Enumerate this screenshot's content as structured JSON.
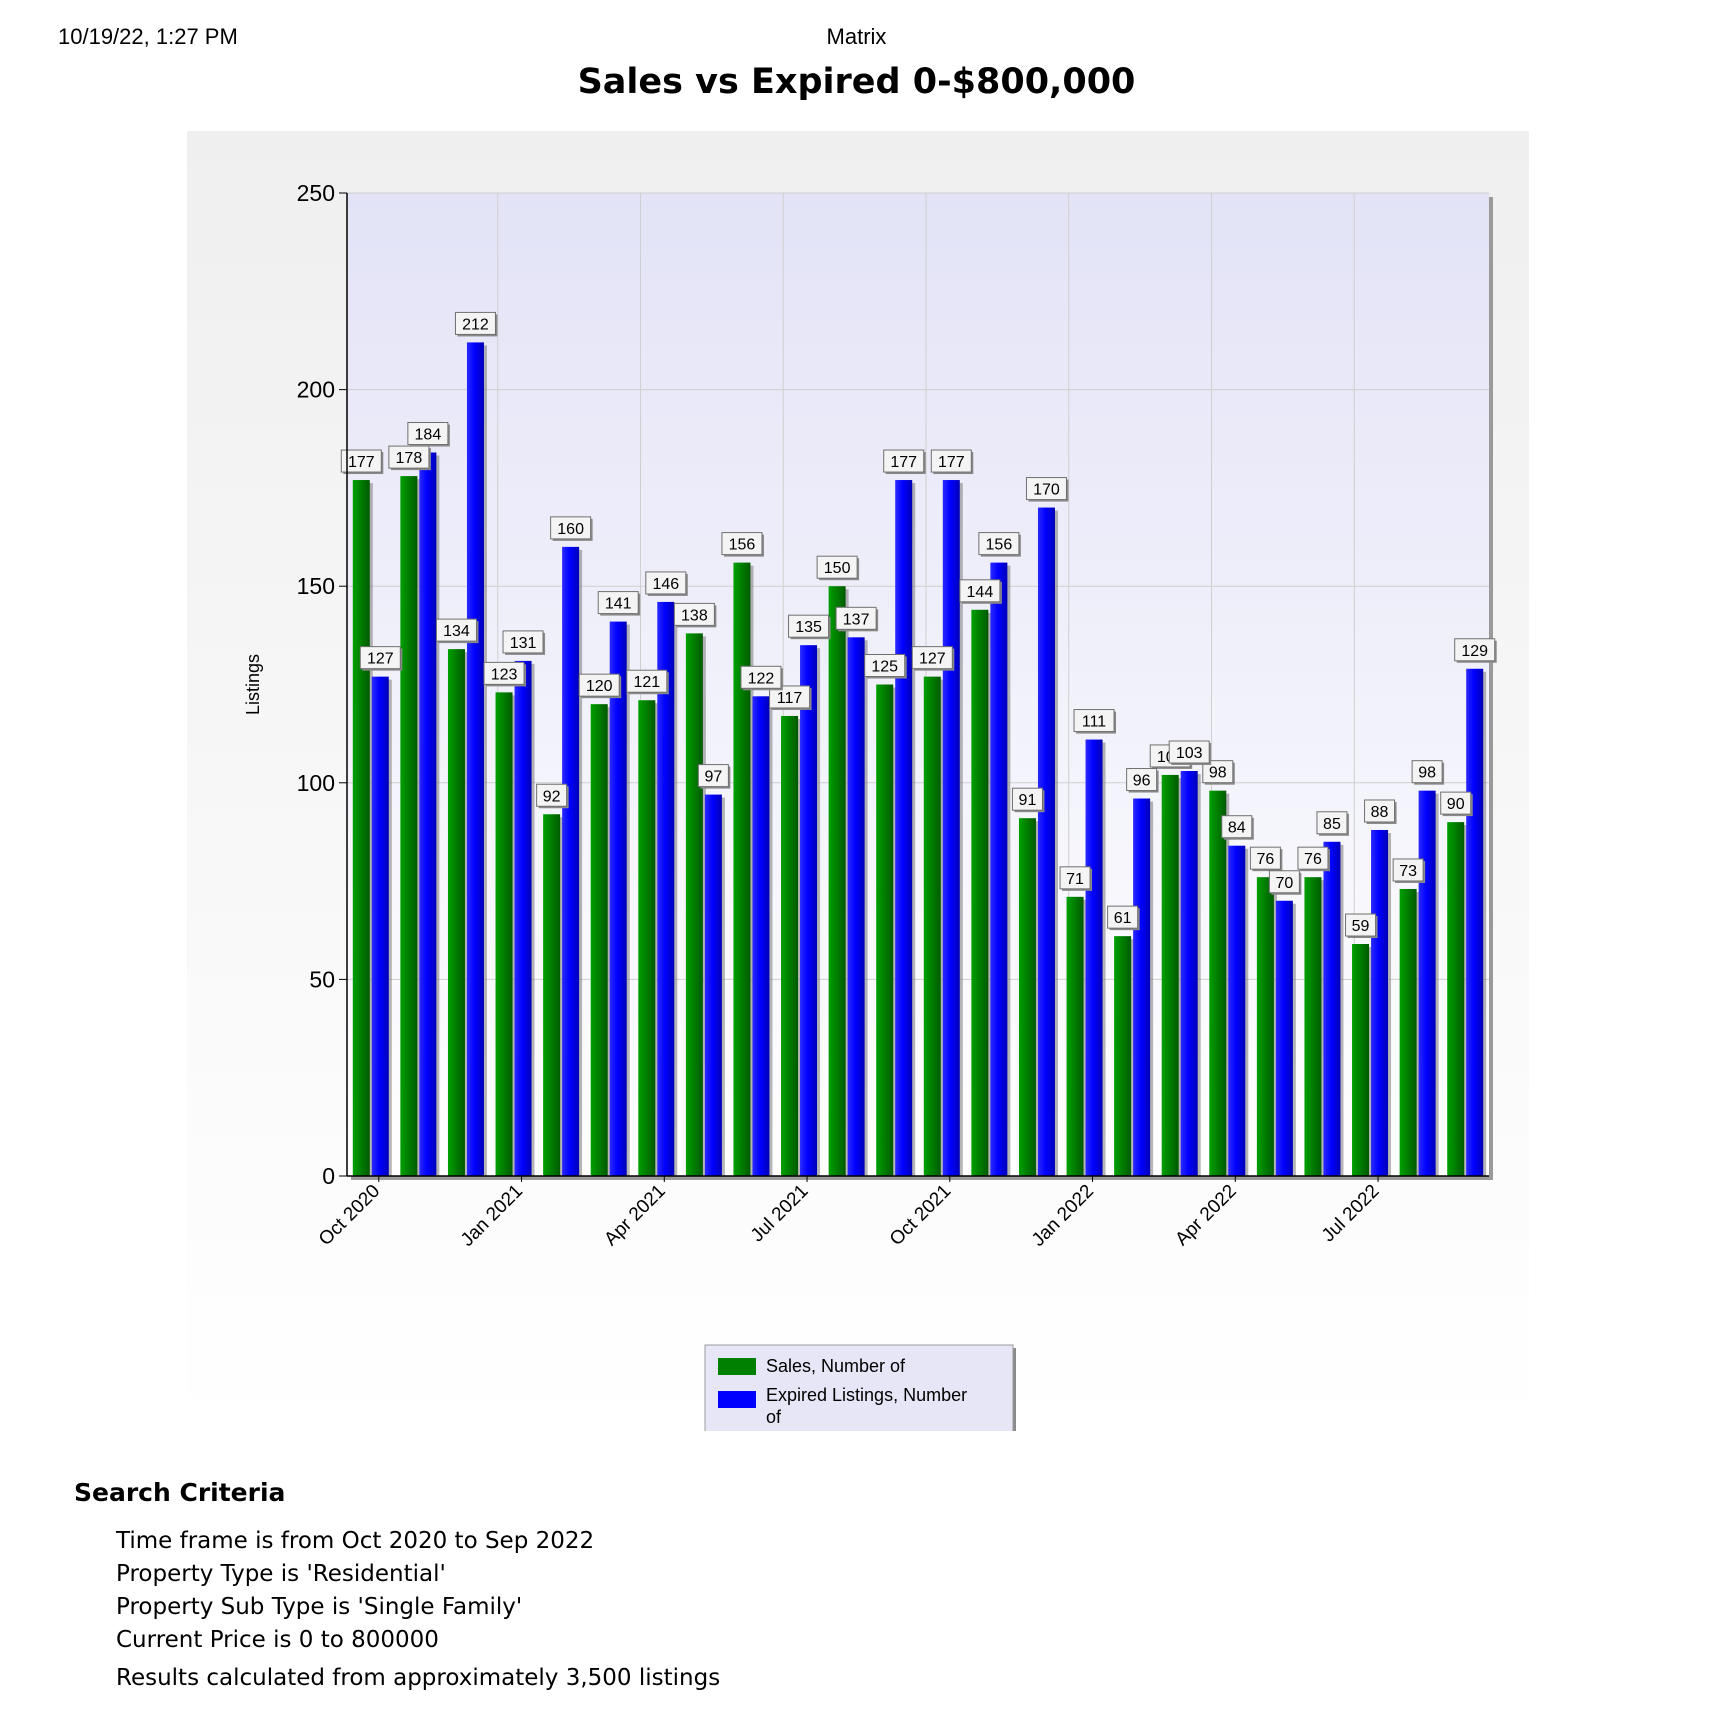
{
  "header": {
    "datetime": "10/19/22, 1:27 PM",
    "app": "Matrix"
  },
  "page_title": "Sales vs Expired 0-$800,000",
  "chart_data": {
    "type": "bar",
    "title": "Sales vs Expired 0-$800,000",
    "ylabel": "Listings",
    "xlabel": "",
    "ylim": [
      0,
      250
    ],
    "yticks": [
      0,
      50,
      100,
      150,
      200,
      250
    ],
    "grid": true,
    "legend_position": "bottom-center",
    "categories": [
      "Oct 2020",
      "Nov 2020",
      "Dec 2020",
      "Jan 2021",
      "Feb 2021",
      "Mar 2021",
      "Apr 2021",
      "May 2021",
      "Jun 2021",
      "Jul 2021",
      "Aug 2021",
      "Sep 2021",
      "Oct 2021",
      "Nov 2021",
      "Dec 2021",
      "Jan 2022",
      "Feb 2022",
      "Mar 2022",
      "Apr 2022",
      "May 2022",
      "Jun 2022",
      "Jul 2022",
      "Aug 2022",
      "Sep 2022"
    ],
    "xtick_labels": [
      "Oct 2020",
      "",
      "",
      "Jan 2021",
      "",
      "",
      "Apr 2021",
      "",
      "",
      "Jul 2021",
      "",
      "",
      "Oct 2021",
      "",
      "",
      "Jan 2022",
      "",
      "",
      "Apr 2022",
      "",
      "",
      "Jul 2022",
      "",
      ""
    ],
    "series": [
      {
        "name": "Sales, Number of",
        "color": "#008000",
        "values": [
          177,
          178,
          134,
          123,
          92,
          120,
          121,
          138,
          156,
          117,
          150,
          125,
          127,
          144,
          91,
          71,
          61,
          102,
          98,
          76,
          76,
          59,
          73,
          90
        ]
      },
      {
        "name": "Expired Listings, Number of",
        "color": "#0000ff",
        "values": [
          127,
          184,
          212,
          131,
          160,
          141,
          146,
          97,
          122,
          135,
          137,
          177,
          177,
          156,
          170,
          111,
          96,
          103,
          84,
          70,
          85,
          88,
          98,
          129
        ]
      }
    ]
  },
  "legend": {
    "items": [
      {
        "label_line1": "Sales, Number of",
        "label_line2": "",
        "color": "#008000"
      },
      {
        "label_line1": "Expired Listings, Number",
        "label_line2": "of",
        "color": "#0000ff"
      }
    ]
  },
  "criteria": {
    "heading": "Search Criteria",
    "lines": [
      "Time frame is from Oct 2020 to Sep 2022",
      "Property Type is 'Residential'",
      "Property Sub Type is 'Single Family'",
      "Current Price is 0 to 800000"
    ],
    "result": "Results calculated from approximately 3,500 listings"
  }
}
